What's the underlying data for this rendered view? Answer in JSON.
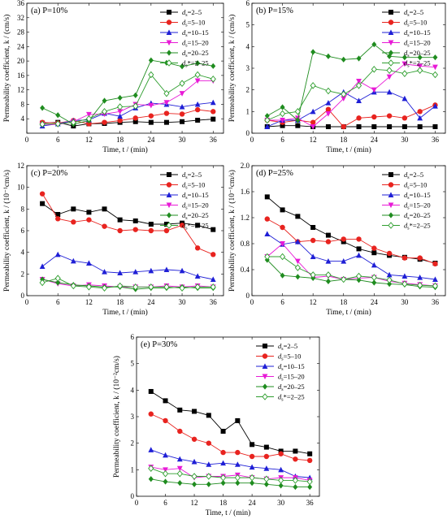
{
  "chart_data": [
    {
      "type": "line",
      "panel": "a",
      "title": "(a) P=10%",
      "xlabel": "Time, t / (min)",
      "ylabel": "Permeability coefficient, k / (cm/s)",
      "xlim": [
        0,
        38
      ],
      "ylim": [
        0,
        36
      ],
      "xticks": [
        0,
        6,
        12,
        18,
        24,
        30,
        36
      ],
      "yticks": [
        0,
        4,
        8,
        12,
        16,
        20,
        24,
        28,
        32,
        36
      ],
      "yticklabels": [
        "",
        "4",
        "8",
        "12",
        "16",
        "20",
        "24",
        "28",
        "32",
        "36"
      ],
      "x": [
        3,
        6,
        9,
        12,
        15,
        18,
        21,
        24,
        27,
        30,
        33,
        36
      ],
      "series": [
        {
          "name": "d_s=2–5",
          "label_sub": "s",
          "label_pre": "d",
          "label_post": "=2–5",
          "color": "#000000",
          "marker": "square",
          "values": [
            2.8,
            3.0,
            2.0,
            2.6,
            2.7,
            3.0,
            3.2,
            3.0,
            3.0,
            3.2,
            3.6,
            3.9
          ]
        },
        {
          "name": "d_s=5–10",
          "label_sub": "s",
          "label_pre": "d",
          "label_post": "=5–10",
          "color": "#e8231f",
          "marker": "circle",
          "values": [
            3.0,
            2.8,
            3.5,
            2.6,
            3.0,
            3.5,
            4.2,
            4.8,
            5.5,
            5.3,
            6.5,
            6.0
          ]
        },
        {
          "name": "d_s=10–15",
          "label_sub": "s",
          "label_pre": "d",
          "label_post": "=10–15",
          "color": "#1f1fd6",
          "marker": "triangle-up",
          "values": [
            2.0,
            2.6,
            3.5,
            3.7,
            5.5,
            4.7,
            7.0,
            8.3,
            8.0,
            7.3,
            8.0,
            8.5
          ]
        },
        {
          "name": "d_s=15–20",
          "label_sub": "s",
          "label_pre": "d",
          "label_post": "=15–20",
          "color": "#e81ad6",
          "marker": "triangle-down",
          "values": [
            2.4,
            2.4,
            3.2,
            5.2,
            5.3,
            6.0,
            8.0,
            7.7,
            8.5,
            11.0,
            14.5,
            14.5
          ]
        },
        {
          "name": "d_s=20–25",
          "label_sub": "s",
          "label_pre": "d",
          "label_post": "=20–25",
          "color": "#1f8c1f",
          "marker": "diamond",
          "values": [
            7.0,
            5.0,
            2.5,
            3.5,
            9.0,
            9.8,
            10.5,
            20.2,
            19.5,
            18.5,
            19.4,
            18.6
          ]
        },
        {
          "name": "d_s*=2–25",
          "label_sub": "s",
          "label_pre": "d",
          "label_post": "*=2–25",
          "color": "#2f9e2f",
          "marker": "diamond-open",
          "values": [
            2.5,
            2.6,
            3.0,
            4.0,
            6.0,
            7.3,
            7.5,
            16.2,
            11.0,
            13.8,
            16.2,
            15.0
          ]
        }
      ]
    },
    {
      "type": "line",
      "panel": "b",
      "title": "(b) P=15%",
      "xlabel": "Time, t / (min)",
      "ylabel": "Permeability coefficient, k / (cm/s)",
      "xlim": [
        0,
        38
      ],
      "ylim": [
        0,
        6
      ],
      "xticks": [
        0,
        6,
        12,
        18,
        24,
        30,
        36
      ],
      "yticks": [
        0,
        1,
        2,
        3,
        4,
        5,
        6
      ],
      "yticklabels": [
        "0",
        "1",
        "2",
        "3",
        "4",
        "5",
        "6"
      ],
      "x": [
        3,
        6,
        9,
        12,
        15,
        18,
        21,
        24,
        27,
        30,
        33,
        36
      ],
      "series": [
        {
          "name": "d_s=2–5",
          "label_sub": "s",
          "label_pre": "d",
          "label_post": "=2–5",
          "color": "#000000",
          "marker": "square",
          "values": [
            0.3,
            0.35,
            0.35,
            0.3,
            0.3,
            0.3,
            0.3,
            0.3,
            0.3,
            0.3,
            0.3,
            0.3
          ]
        },
        {
          "name": "d_s=5–10",
          "label_sub": "s",
          "label_pre": "d",
          "label_post": "=5–10",
          "color": "#e8231f",
          "marker": "circle",
          "values": [
            0.6,
            0.5,
            0.6,
            0.5,
            1.1,
            0.3,
            0.7,
            0.75,
            0.8,
            0.7,
            1.0,
            1.3
          ]
        },
        {
          "name": "d_s=10–15",
          "label_sub": "s",
          "label_pre": "d",
          "label_post": "=10–15",
          "color": "#1f1fd6",
          "marker": "triangle-up",
          "values": [
            0.3,
            0.6,
            0.6,
            1.0,
            1.4,
            1.9,
            1.5,
            1.9,
            1.9,
            1.6,
            0.7,
            1.25
          ]
        },
        {
          "name": "d_s=15–20",
          "label_sub": "s",
          "label_pre": "d",
          "label_post": "=15–20",
          "color": "#e81ad6",
          "marker": "triangle-down",
          "values": [
            0.6,
            0.6,
            0.7,
            0.3,
            0.9,
            1.6,
            2.4,
            2.0,
            2.6,
            3.2,
            3.1,
            3.05
          ]
        },
        {
          "name": "d_s=20–25",
          "label_sub": "s",
          "label_pre": "d",
          "label_post": "=20–25",
          "color": "#1f8c1f",
          "marker": "diamond",
          "values": [
            0.8,
            1.2,
            0.6,
            3.75,
            3.55,
            3.4,
            3.45,
            4.1,
            3.55,
            3.5,
            3.5,
            3.5
          ]
        },
        {
          "name": "d_s*=2–25",
          "label_sub": "s",
          "label_pre": "d",
          "label_post": "*=2–25",
          "color": "#2f9e2f",
          "marker": "diamond-open",
          "values": [
            0.6,
            0.9,
            1.0,
            2.2,
            1.95,
            1.8,
            2.2,
            2.95,
            2.9,
            2.75,
            2.9,
            2.7
          ]
        }
      ]
    },
    {
      "type": "line",
      "panel": "c",
      "title": "(c) P=20%",
      "xlabel": "Time, t / (min)",
      "ylabel": "Permeability coefficient, k / (10⁻¹cm/s)",
      "xlim": [
        0,
        38
      ],
      "ylim": [
        0,
        12
      ],
      "xticks": [
        0,
        6,
        12,
        18,
        24,
        30,
        36
      ],
      "yticks": [
        0,
        2,
        4,
        6,
        8,
        10,
        12
      ],
      "yticklabels": [
        "0",
        "2",
        "4",
        "6",
        "8",
        "10",
        "12"
      ],
      "x": [
        3,
        6,
        9,
        12,
        15,
        18,
        21,
        24,
        27,
        30,
        33,
        36
      ],
      "series": [
        {
          "name": "d_s=2–5",
          "label_sub": "s",
          "label_pre": "d",
          "label_post": "=2–5",
          "color": "#000000",
          "marker": "square",
          "values": [
            8.5,
            7.5,
            8.0,
            7.7,
            8.0,
            7.0,
            6.9,
            6.6,
            6.6,
            6.7,
            6.5,
            6.1
          ]
        },
        {
          "name": "d_s=5–10",
          "label_sub": "s",
          "label_pre": "d",
          "label_post": "=5–10",
          "color": "#e8231f",
          "marker": "circle",
          "values": [
            9.4,
            7.1,
            6.8,
            7.0,
            6.4,
            6.0,
            6.1,
            6.0,
            6.0,
            6.5,
            4.4,
            3.8
          ]
        },
        {
          "name": "d_s=10–15",
          "label_sub": "s",
          "label_pre": "d",
          "label_post": "=10–15",
          "color": "#1f1fd6",
          "marker": "triangle-up",
          "values": [
            2.7,
            3.8,
            3.2,
            3.0,
            2.2,
            2.1,
            2.2,
            2.3,
            2.4,
            2.3,
            1.8,
            1.5
          ]
        },
        {
          "name": "d_s=15–20",
          "label_sub": "s",
          "label_pre": "d",
          "label_post": "=15–20",
          "color": "#e81ad6",
          "marker": "triangle-down",
          "values": [
            1.5,
            1.1,
            0.9,
            1.0,
            0.9,
            0.8,
            0.8,
            0.8,
            0.9,
            0.8,
            0.9,
            0.8
          ]
        },
        {
          "name": "d_s=20–25",
          "label_sub": "s",
          "label_pre": "d",
          "label_post": "=20–25",
          "color": "#1f8c1f",
          "marker": "diamond",
          "values": [
            1.5,
            1.2,
            1.0,
            0.9,
            0.8,
            0.8,
            0.6,
            0.7,
            0.7,
            0.8,
            0.7,
            0.7
          ]
        },
        {
          "name": "d_s*=2–25",
          "label_sub": "s",
          "label_pre": "d",
          "label_post": "*=2–25",
          "color": "#2f9e2f",
          "marker": "diamond-open",
          "values": [
            1.2,
            1.6,
            0.9,
            0.8,
            0.7,
            0.9,
            0.8,
            0.8,
            0.8,
            0.7,
            0.8,
            0.8
          ]
        }
      ]
    },
    {
      "type": "line",
      "panel": "d",
      "title": "(d) P=25%",
      "xlabel": "Time, t / (min)",
      "ylabel": "Permeability coefficient, k / (10⁻¹cm/s)",
      "xlim": [
        0,
        38
      ],
      "ylim": [
        0,
        2.0
      ],
      "xticks": [
        0,
        6,
        12,
        18,
        24,
        30,
        36
      ],
      "yticks": [
        0,
        0.4,
        0.8,
        1.2,
        1.6,
        2.0
      ],
      "yticklabels": [
        "0",
        "0.4",
        "0.8",
        "1.2",
        "1.6",
        "2.0"
      ],
      "x": [
        3,
        6,
        9,
        12,
        15,
        18,
        21,
        24,
        27,
        30,
        33,
        36
      ],
      "series": [
        {
          "name": "d_s=2–5",
          "label_sub": "s",
          "label_pre": "d",
          "label_post": "=2–5",
          "color": "#000000",
          "marker": "square",
          "values": [
            1.52,
            1.32,
            1.22,
            1.05,
            0.93,
            0.83,
            0.72,
            0.66,
            0.62,
            0.59,
            0.56,
            0.5
          ]
        },
        {
          "name": "d_s=5–10",
          "label_sub": "s",
          "label_pre": "d",
          "label_post": "=5–10",
          "color": "#e8231f",
          "marker": "circle",
          "values": [
            1.18,
            1.05,
            0.83,
            0.85,
            0.83,
            0.87,
            0.87,
            0.73,
            0.65,
            0.58,
            0.58,
            0.49
          ]
        },
        {
          "name": "d_s=10–15",
          "label_sub": "s",
          "label_pre": "d",
          "label_post": "=10–15",
          "color": "#1f1fd6",
          "marker": "triangle-up",
          "values": [
            0.95,
            0.79,
            0.83,
            0.6,
            0.53,
            0.53,
            0.62,
            0.47,
            0.32,
            0.3,
            0.28,
            0.25
          ]
        },
        {
          "name": "d_s=15–20",
          "label_sub": "s",
          "label_pre": "d",
          "label_post": "=15–20",
          "color": "#e81ad6",
          "marker": "triangle-down",
          "values": [
            0.6,
            0.8,
            0.53,
            0.28,
            0.3,
            0.25,
            0.27,
            0.28,
            0.22,
            0.19,
            0.17,
            0.15
          ]
        },
        {
          "name": "d_s=20–25",
          "label_sub": "s",
          "label_pre": "d",
          "label_post": "=20–25",
          "color": "#1f8c1f",
          "marker": "diamond",
          "values": [
            0.55,
            0.31,
            0.29,
            0.27,
            0.22,
            0.25,
            0.24,
            0.2,
            0.18,
            0.17,
            0.14,
            0.13
          ]
        },
        {
          "name": "d_s*=2–25",
          "label_sub": "s",
          "label_pre": "d",
          "label_post": "*=2–25",
          "color": "#2f9e2f",
          "marker": "diamond-open",
          "values": [
            0.6,
            0.6,
            0.43,
            0.32,
            0.32,
            0.25,
            0.3,
            0.28,
            0.24,
            0.18,
            0.16,
            0.15
          ]
        }
      ]
    },
    {
      "type": "line",
      "panel": "e",
      "title": "(e) P=30%",
      "xlabel": "Time, t / (min)",
      "ylabel": "Permeability coefficient, k / (10⁻²cm/s)",
      "xlim": [
        0,
        38
      ],
      "ylim": [
        0,
        6
      ],
      "xticks": [
        0,
        6,
        12,
        18,
        24,
        30,
        36
      ],
      "yticks": [
        0,
        1,
        2,
        3,
        4,
        5,
        6
      ],
      "yticklabels": [
        "0",
        "1",
        "2",
        "3",
        "4",
        "5",
        "6"
      ],
      "x": [
        3,
        6,
        9,
        12,
        15,
        18,
        21,
        24,
        27,
        30,
        33,
        36
      ],
      "series": [
        {
          "name": "d_s=2–5",
          "label_sub": "s",
          "label_pre": "d",
          "label_post": "=2–5",
          "color": "#000000",
          "marker": "square",
          "values": [
            3.95,
            3.6,
            3.25,
            3.2,
            3.05,
            2.45,
            2.85,
            1.95,
            1.85,
            1.7,
            1.7,
            1.6
          ]
        },
        {
          "name": "d_s=5–10",
          "label_sub": "s",
          "label_pre": "d",
          "label_post": "=5–10",
          "color": "#e8231f",
          "marker": "circle",
          "values": [
            3.1,
            2.85,
            2.45,
            2.15,
            2.0,
            1.65,
            1.65,
            1.5,
            1.5,
            1.6,
            1.4,
            1.35
          ]
        },
        {
          "name": "d_s=10–15",
          "label_sub": "s",
          "label_pre": "d",
          "label_post": "=10–15",
          "color": "#1f1fd6",
          "marker": "triangle-up",
          "values": [
            1.75,
            1.55,
            1.4,
            1.3,
            1.2,
            1.25,
            1.2,
            1.1,
            1.05,
            1.0,
            0.75,
            0.7
          ]
        },
        {
          "name": "d_s=15–20",
          "label_sub": "s",
          "label_pre": "d",
          "label_post": "=15–20",
          "color": "#e81ad6",
          "marker": "triangle-down",
          "values": [
            1.1,
            1.0,
            1.05,
            0.7,
            0.75,
            0.75,
            0.8,
            0.7,
            0.65,
            0.7,
            0.7,
            0.6
          ]
        },
        {
          "name": "d_s=20–25",
          "label_sub": "s",
          "label_pre": "d",
          "label_post": "=20–25",
          "color": "#1f8c1f",
          "marker": "diamond",
          "values": [
            0.65,
            0.55,
            0.5,
            0.45,
            0.45,
            0.5,
            0.5,
            0.5,
            0.45,
            0.4,
            0.35,
            0.35
          ]
        },
        {
          "name": "d_s*=2–25",
          "label_sub": "s",
          "label_pre": "d",
          "label_post": "*=2–25",
          "color": "#2f9e2f",
          "marker": "diamond-open",
          "values": [
            1.05,
            0.85,
            0.85,
            0.75,
            0.75,
            0.7,
            0.7,
            0.7,
            0.65,
            0.6,
            0.6,
            0.55
          ]
        }
      ]
    }
  ]
}
